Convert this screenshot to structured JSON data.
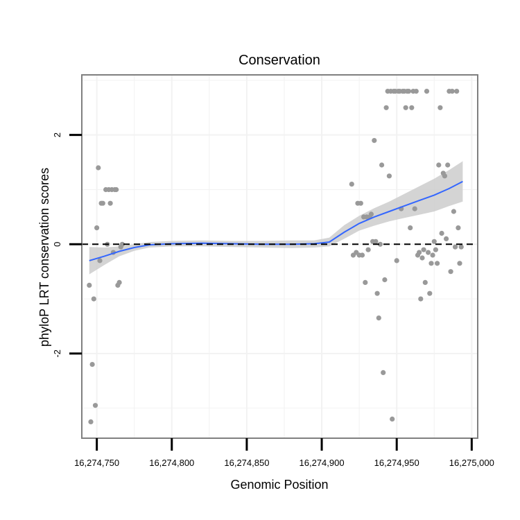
{
  "chart_data": {
    "type": "scatter",
    "title": "Conservation",
    "xlabel": "Genomic Position",
    "ylabel": "phyloP LRT conservation scores",
    "xlim": [
      16274740,
      16275004
    ],
    "ylim": [
      -3.55,
      3.1
    ],
    "x_ticks": [
      16274750,
      16274800,
      16274850,
      16274900,
      16274950,
      16275000
    ],
    "x_tick_labels": [
      "16,274,750",
      "16,274,800",
      "16,274,850",
      "16,274,900",
      "16,274,950",
      "16,275,000"
    ],
    "y_ticks": [
      -2,
      0,
      2
    ],
    "y_tick_labels": [
      "-2",
      "0",
      "2"
    ],
    "reference_line": {
      "y": 0,
      "style": "dashed",
      "color": "#000000"
    },
    "colors": {
      "points": "#999999",
      "smooth": "#3366FF",
      "band": "#cccccc",
      "panel_border": "#7f7f7f",
      "grid": "#f2f2f2"
    },
    "points": [
      {
        "x": 16274745,
        "y": -0.75
      },
      {
        "x": 16274746,
        "y": -3.25
      },
      {
        "x": 16274747,
        "y": -2.2
      },
      {
        "x": 16274748,
        "y": -1.0
      },
      {
        "x": 16274749,
        "y": -2.95
      },
      {
        "x": 16274750,
        "y": 0.3
      },
      {
        "x": 16274751,
        "y": 1.4
      },
      {
        "x": 16274752,
        "y": -0.3
      },
      {
        "x": 16274753,
        "y": 0.75
      },
      {
        "x": 16274754,
        "y": 0.75
      },
      {
        "x": 16274756,
        "y": 1.0
      },
      {
        "x": 16274757,
        "y": 0.0
      },
      {
        "x": 16274758,
        "y": 1.0
      },
      {
        "x": 16274759,
        "y": 0.75
      },
      {
        "x": 16274760,
        "y": 1.0
      },
      {
        "x": 16274761,
        "y": -0.15
      },
      {
        "x": 16274762,
        "y": 1.0
      },
      {
        "x": 16274763,
        "y": 1.0
      },
      {
        "x": 16274764,
        "y": -0.75
      },
      {
        "x": 16274765,
        "y": -0.7
      },
      {
        "x": 16274766,
        "y": -0.05
      },
      {
        "x": 16274767,
        "y": 0.0
      },
      {
        "x": 16274920,
        "y": 1.1
      },
      {
        "x": 16274921,
        "y": -0.2
      },
      {
        "x": 16274923,
        "y": -0.15
      },
      {
        "x": 16274924,
        "y": 0.75
      },
      {
        "x": 16274925,
        "y": -0.2
      },
      {
        "x": 16274926,
        "y": 0.75
      },
      {
        "x": 16274927,
        "y": -0.2
      },
      {
        "x": 16274928,
        "y": 0.5
      },
      {
        "x": 16274929,
        "y": -0.7
      },
      {
        "x": 16274930,
        "y": 0.5
      },
      {
        "x": 16274931,
        "y": -0.1
      },
      {
        "x": 16274932,
        "y": 0.5
      },
      {
        "x": 16274933,
        "y": 0.55
      },
      {
        "x": 16274934,
        "y": 0.05
      },
      {
        "x": 16274935,
        "y": 1.9
      },
      {
        "x": 16274936,
        "y": 0.05
      },
      {
        "x": 16274937,
        "y": -0.9
      },
      {
        "x": 16274938,
        "y": -1.35
      },
      {
        "x": 16274939,
        "y": 0.0
      },
      {
        "x": 16274940,
        "y": 1.45
      },
      {
        "x": 16274941,
        "y": -2.35
      },
      {
        "x": 16274942,
        "y": -0.65
      },
      {
        "x": 16274943,
        "y": 2.5
      },
      {
        "x": 16274944,
        "y": 2.8
      },
      {
        "x": 16274945,
        "y": 1.25
      },
      {
        "x": 16274946,
        "y": 2.8
      },
      {
        "x": 16274947,
        "y": -3.2
      },
      {
        "x": 16274948,
        "y": 2.8
      },
      {
        "x": 16274949,
        "y": 2.8
      },
      {
        "x": 16274950,
        "y": -0.3
      },
      {
        "x": 16274951,
        "y": 2.8
      },
      {
        "x": 16274952,
        "y": 2.8
      },
      {
        "x": 16274953,
        "y": 0.65
      },
      {
        "x": 16274954,
        "y": 2.8
      },
      {
        "x": 16274955,
        "y": 2.8
      },
      {
        "x": 16274956,
        "y": 2.5
      },
      {
        "x": 16274957,
        "y": 2.8
      },
      {
        "x": 16274958,
        "y": 2.8
      },
      {
        "x": 16274959,
        "y": 0.3
      },
      {
        "x": 16274960,
        "y": 2.5
      },
      {
        "x": 16274961,
        "y": 2.8
      },
      {
        "x": 16274962,
        "y": 0.65
      },
      {
        "x": 16274963,
        "y": 2.8
      },
      {
        "x": 16274964,
        "y": -0.2
      },
      {
        "x": 16274965,
        "y": -0.15
      },
      {
        "x": 16274966,
        "y": -1.0
      },
      {
        "x": 16274967,
        "y": -0.25
      },
      {
        "x": 16274968,
        "y": -0.1
      },
      {
        "x": 16274969,
        "y": -0.7
      },
      {
        "x": 16274970,
        "y": 2.8
      },
      {
        "x": 16274971,
        "y": -0.15
      },
      {
        "x": 16274972,
        "y": -0.9
      },
      {
        "x": 16274973,
        "y": -0.35
      },
      {
        "x": 16274974,
        "y": -0.2
      },
      {
        "x": 16274975,
        "y": 0.05
      },
      {
        "x": 16274976,
        "y": -0.1
      },
      {
        "x": 16274977,
        "y": -0.35
      },
      {
        "x": 16274978,
        "y": 1.45
      },
      {
        "x": 16274979,
        "y": 2.5
      },
      {
        "x": 16274980,
        "y": 0.2
      },
      {
        "x": 16274981,
        "y": 1.3
      },
      {
        "x": 16274982,
        "y": 1.25
      },
      {
        "x": 16274983,
        "y": 0.1
      },
      {
        "x": 16274984,
        "y": 1.45
      },
      {
        "x": 16274985,
        "y": 2.8
      },
      {
        "x": 16274986,
        "y": -0.5
      },
      {
        "x": 16274987,
        "y": 2.8
      },
      {
        "x": 16274988,
        "y": 0.6
      },
      {
        "x": 16274989,
        "y": -0.05
      },
      {
        "x": 16274990,
        "y": 2.8
      },
      {
        "x": 16274991,
        "y": 0.3
      },
      {
        "x": 16274992,
        "y": -0.35
      },
      {
        "x": 16274993,
        "y": -0.05
      }
    ],
    "smooth": {
      "x": [
        16274745,
        16274755,
        16274765,
        16274775,
        16274785,
        16274800,
        16274820,
        16274840,
        16274860,
        16274880,
        16274895,
        16274905,
        16274915,
        16274925,
        16274935,
        16274945,
        16274955,
        16274965,
        16274975,
        16274985,
        16274994
      ],
      "y": [
        -0.3,
        -0.22,
        -0.13,
        -0.06,
        -0.01,
        0.01,
        0.02,
        0.01,
        0.0,
        0.0,
        0.01,
        0.04,
        0.22,
        0.38,
        0.5,
        0.6,
        0.7,
        0.8,
        0.9,
        1.02,
        1.15
      ],
      "ylo": [
        -0.55,
        -0.38,
        -0.22,
        -0.12,
        -0.06,
        -0.04,
        -0.04,
        -0.05,
        -0.06,
        -0.07,
        -0.06,
        -0.04,
        0.1,
        0.25,
        0.34,
        0.42,
        0.48,
        0.54,
        0.6,
        0.7,
        0.78
      ],
      "yhi": [
        -0.05,
        -0.06,
        -0.04,
        0.0,
        0.04,
        0.06,
        0.07,
        0.06,
        0.06,
        0.07,
        0.07,
        0.12,
        0.35,
        0.52,
        0.66,
        0.78,
        0.92,
        1.06,
        1.2,
        1.36,
        1.52
      ]
    }
  }
}
